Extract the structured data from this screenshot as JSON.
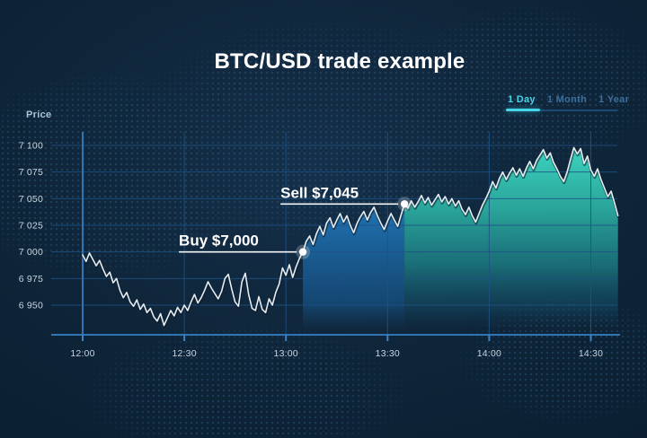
{
  "title": "BTC/USD trade example",
  "price_axis_label": "Price",
  "tabs": [
    {
      "label": "1 Day",
      "active": true
    },
    {
      "label": "1 Month",
      "active": false
    },
    {
      "label": "1 Year",
      "active": false
    }
  ],
  "colors": {
    "background": "#0e2438",
    "accent_cyan": "#45d6e7",
    "inactive_tab": "#3d6f9c",
    "grid": "#1f5285",
    "axis_bright": "#3174b4",
    "tick_bright": "#3d82c6",
    "line": "#e6ecf1",
    "line_shadow": "rgba(9,28,42,0.55)",
    "buy_fill_top": "#2e94cd",
    "buy_fill_mid": "#1d68a4",
    "sell_fill_top": "#3fd9c4",
    "sell_fill_mid": "#1d7f86",
    "axis_text": "#c6d5e1",
    "annotation_text": "#ffffff"
  },
  "chart_data": {
    "type": "area",
    "title": "BTC/USD trade example",
    "ylabel": "Price",
    "pair": "BTC/USD",
    "timeframe_selected": "1 Day",
    "x_tick_labels": [
      "12:00",
      "12:30",
      "13:00",
      "13:30",
      "14:00",
      "14:30"
    ],
    "y_ticks": [
      7100,
      7075,
      7050,
      7025,
      7000,
      6975,
      6950
    ],
    "y_tick_labels": [
      "7 100",
      "7 075",
      "7 050",
      "7 025",
      "7 000",
      "6 975",
      "6 950"
    ],
    "ylim": [
      6922,
      7112
    ],
    "x_minutes_range": [
      0,
      158
    ],
    "grid": true,
    "annotations": [
      {
        "type": "buy",
        "label": "Buy $7,000",
        "time": "13:05",
        "time_minutes": 65,
        "price": 7000
      },
      {
        "type": "sell",
        "label": "Sell $7,045",
        "time": "13:35",
        "time_minutes": 95,
        "price": 7045
      }
    ],
    "highlight_region": {
      "from_minutes": 65,
      "to_minutes": 95
    },
    "series": [
      {
        "name": "BTC/USD price",
        "points": [
          [
            0,
            6997
          ],
          [
            1,
            6991
          ],
          [
            2,
            6999
          ],
          [
            3,
            6993
          ],
          [
            4,
            6987
          ],
          [
            5,
            6992
          ],
          [
            6,
            6984
          ],
          [
            7,
            6977
          ],
          [
            8,
            6981
          ],
          [
            9,
            6971
          ],
          [
            10,
            6975
          ],
          [
            11,
            6964
          ],
          [
            12,
            6957
          ],
          [
            13,
            6962
          ],
          [
            14,
            6953
          ],
          [
            15,
            6949
          ],
          [
            16,
            6955
          ],
          [
            17,
            6946
          ],
          [
            18,
            6951
          ],
          [
            19,
            6943
          ],
          [
            20,
            6947
          ],
          [
            21,
            6939
          ],
          [
            22,
            6935
          ],
          [
            23,
            6942
          ],
          [
            24,
            6931
          ],
          [
            25,
            6938
          ],
          [
            26,
            6945
          ],
          [
            27,
            6940
          ],
          [
            28,
            6948
          ],
          [
            29,
            6943
          ],
          [
            30,
            6950
          ],
          [
            31,
            6945
          ],
          [
            32,
            6953
          ],
          [
            33,
            6960
          ],
          [
            34,
            6952
          ],
          [
            35,
            6957
          ],
          [
            36,
            6964
          ],
          [
            37,
            6972
          ],
          [
            38,
            6966
          ],
          [
            39,
            6961
          ],
          [
            40,
            6956
          ],
          [
            41,
            6963
          ],
          [
            42,
            6975
          ],
          [
            43,
            6979
          ],
          [
            44,
            6965
          ],
          [
            45,
            6953
          ],
          [
            46,
            6949
          ],
          [
            47,
            6972
          ],
          [
            48,
            6980
          ],
          [
            49,
            6960
          ],
          [
            50,
            6947
          ],
          [
            51,
            6945
          ],
          [
            52,
            6958
          ],
          [
            53,
            6946
          ],
          [
            54,
            6943
          ],
          [
            55,
            6956
          ],
          [
            56,
            6950
          ],
          [
            57,
            6962
          ],
          [
            58,
            6970
          ],
          [
            59,
            6985
          ],
          [
            60,
            6978
          ],
          [
            61,
            6988
          ],
          [
            62,
            6976
          ],
          [
            63,
            6986
          ],
          [
            64,
            6994
          ],
          [
            65,
            7000
          ],
          [
            66,
            7010
          ],
          [
            67,
            7015
          ],
          [
            68,
            7007
          ],
          [
            69,
            7017
          ],
          [
            70,
            7024
          ],
          [
            71,
            7016
          ],
          [
            72,
            7027
          ],
          [
            73,
            7032
          ],
          [
            74,
            7023
          ],
          [
            75,
            7030
          ],
          [
            76,
            7036
          ],
          [
            77,
            7028
          ],
          [
            78,
            7034
          ],
          [
            79,
            7025
          ],
          [
            80,
            7018
          ],
          [
            81,
            7027
          ],
          [
            82,
            7033
          ],
          [
            83,
            7038
          ],
          [
            84,
            7030
          ],
          [
            85,
            7037
          ],
          [
            86,
            7042
          ],
          [
            87,
            7034
          ],
          [
            88,
            7027
          ],
          [
            89,
            7021
          ],
          [
            90,
            7029
          ],
          [
            91,
            7036
          ],
          [
            92,
            7030
          ],
          [
            93,
            7024
          ],
          [
            94,
            7035
          ],
          [
            95,
            7045
          ],
          [
            96,
            7041
          ],
          [
            97,
            7048
          ],
          [
            98,
            7042
          ],
          [
            99,
            7047
          ],
          [
            100,
            7053
          ],
          [
            101,
            7046
          ],
          [
            102,
            7051
          ],
          [
            103,
            7044
          ],
          [
            104,
            7049
          ],
          [
            105,
            7054
          ],
          [
            106,
            7047
          ],
          [
            107,
            7052
          ],
          [
            108,
            7045
          ],
          [
            109,
            7050
          ],
          [
            110,
            7043
          ],
          [
            111,
            7048
          ],
          [
            112,
            7040
          ],
          [
            113,
            7035
          ],
          [
            114,
            7042
          ],
          [
            115,
            7034
          ],
          [
            116,
            7028
          ],
          [
            117,
            7036
          ],
          [
            118,
            7044
          ],
          [
            119,
            7050
          ],
          [
            120,
            7057
          ],
          [
            121,
            7066
          ],
          [
            122,
            7060
          ],
          [
            123,
            7069
          ],
          [
            124,
            7075
          ],
          [
            125,
            7068
          ],
          [
            126,
            7074
          ],
          [
            127,
            7079
          ],
          [
            128,
            7072
          ],
          [
            129,
            7078
          ],
          [
            130,
            7071
          ],
          [
            131,
            7079
          ],
          [
            132,
            7085
          ],
          [
            133,
            7078
          ],
          [
            134,
            7086
          ],
          [
            135,
            7091
          ],
          [
            136,
            7096
          ],
          [
            137,
            7088
          ],
          [
            138,
            7093
          ],
          [
            139,
            7084
          ],
          [
            140,
            7078
          ],
          [
            141,
            7071
          ],
          [
            142,
            7066
          ],
          [
            143,
            7075
          ],
          [
            144,
            7087
          ],
          [
            145,
            7098
          ],
          [
            146,
            7092
          ],
          [
            147,
            7097
          ],
          [
            148,
            7083
          ],
          [
            149,
            7090
          ],
          [
            150,
            7077
          ],
          [
            151,
            7071
          ],
          [
            152,
            7078
          ],
          [
            153,
            7068
          ],
          [
            154,
            7060
          ],
          [
            155,
            7052
          ],
          [
            156,
            7057
          ],
          [
            157,
            7046
          ],
          [
            158,
            7034
          ]
        ]
      }
    ]
  }
}
